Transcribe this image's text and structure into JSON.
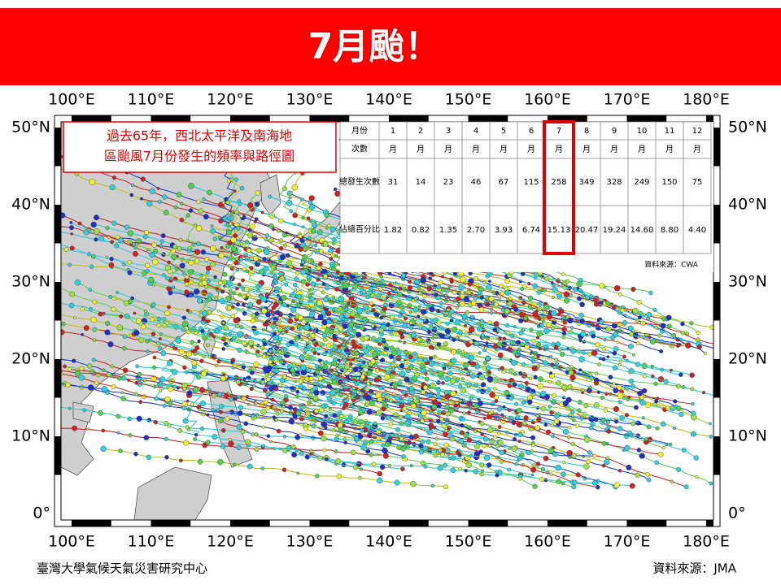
{
  "header": {
    "title": "7月颱！"
  },
  "map": {
    "lon_labels": [
      "100°E",
      "110°E",
      "120°E",
      "130°E",
      "140°E",
      "150°E",
      "160°E",
      "170°E",
      "180°E"
    ],
    "lat_labels": [
      "50°N",
      "40°N",
      "30°N",
      "20°N",
      "10°N",
      "0°"
    ],
    "note": [
      "過去65年，西北太平洋及南海地",
      "區颱風7月份發生的頻率與路徑圖"
    ]
  },
  "table": {
    "row_headers": [
      "月份",
      "次數",
      "總發生次數",
      "佔總百分比"
    ],
    "months": [
      "1",
      "2",
      "3",
      "4",
      "5",
      "6",
      "7",
      "8",
      "9",
      "10",
      "11",
      "12"
    ],
    "month_unit": "月",
    "counts": [
      31,
      14,
      23,
      46,
      67,
      115,
      258,
      349,
      328,
      249,
      150,
      75
    ],
    "percents": [
      "1.82",
      "0.82",
      "1.35",
      "2.70",
      "3.93",
      "6.74",
      "15.13",
      "20.47",
      "19.24",
      "14.60",
      "8.80",
      "4.40"
    ],
    "source": "資料來源：CWA"
  },
  "footer": {
    "left": "臺灣大學氣候天氣災害研究中心",
    "right": "資料來源：JMA"
  }
}
